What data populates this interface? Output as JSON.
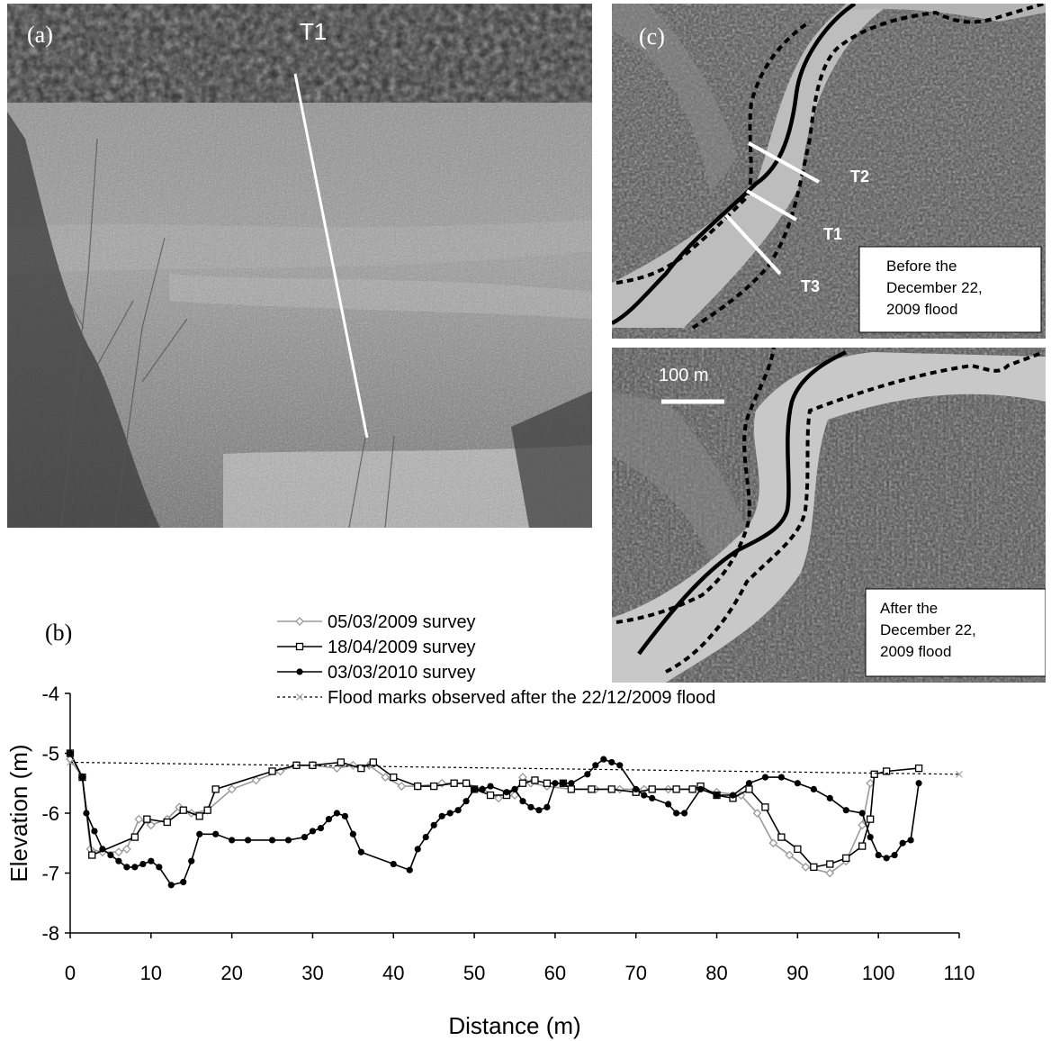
{
  "photo": {
    "label": "(a)",
    "transect": "T1"
  },
  "maps": {
    "label": "(c)",
    "transects": [
      "T2",
      "T1",
      "T3"
    ],
    "before_caption": [
      "Before the",
      "December 22,",
      "2009  flood"
    ],
    "after_caption": [
      "After the",
      "December 22,",
      "2009  flood"
    ],
    "scale_bar": "100 m"
  },
  "chart_data": {
    "type": "line",
    "panel_label": "(b)",
    "title": "",
    "xlabel": "Distance (m)",
    "ylabel": "Elevation (m)",
    "xlim": [
      0,
      110
    ],
    "ylim": [
      -8,
      -4
    ],
    "xticks": [
      0,
      10,
      20,
      30,
      40,
      50,
      60,
      70,
      80,
      90,
      100,
      110
    ],
    "yticks": [
      -8,
      -7,
      -6,
      -5,
      -4
    ],
    "legend_position": "top",
    "series": [
      {
        "name": "05/03/2009 survey",
        "color": "#9a9a9a",
        "marker": "diamond",
        "x": [
          0,
          1.5,
          2.5,
          4,
          6,
          7,
          8.5,
          10,
          12,
          13.5,
          15,
          17,
          20,
          23,
          26,
          28,
          30,
          33,
          35,
          37,
          39,
          41,
          43,
          46,
          49,
          51,
          53,
          55,
          56,
          57,
          59,
          62,
          65,
          68,
          71,
          74,
          77,
          80,
          83,
          85,
          87,
          89,
          91,
          94,
          96,
          98,
          99
        ],
        "y": [
          -5.1,
          -5.4,
          -6.6,
          -6.65,
          -6.65,
          -6.6,
          -6.1,
          -6.2,
          -6.1,
          -5.9,
          -6.0,
          -5.95,
          -5.6,
          -5.45,
          -5.3,
          -5.2,
          -5.2,
          -5.25,
          -5.2,
          -5.2,
          -5.4,
          -5.55,
          -5.55,
          -5.5,
          -5.5,
          -5.6,
          -5.75,
          -5.7,
          -5.4,
          -5.5,
          -5.55,
          -5.6,
          -5.6,
          -5.6,
          -5.6,
          -5.6,
          -5.6,
          -5.65,
          -5.7,
          -6.0,
          -6.5,
          -6.7,
          -6.9,
          -7.0,
          -6.8,
          -6.2,
          -5.5
        ]
      },
      {
        "name": "18/04/2009 survey",
        "color": "#000000",
        "marker": "square",
        "x": [
          0,
          1.5,
          2.7,
          8,
          9.5,
          12,
          14,
          16,
          17,
          18,
          25,
          28,
          30,
          33.5,
          36,
          37.5,
          40,
          43,
          45,
          47.5,
          49,
          50,
          52,
          54,
          56,
          57.5,
          59,
          61,
          62,
          64.5,
          67,
          70,
          72,
          75,
          77,
          78,
          80,
          82,
          84,
          86,
          88,
          90,
          92,
          94,
          96,
          98,
          99,
          99.5,
          101,
          105
        ],
        "y": [
          -5.0,
          -5.4,
          -6.7,
          -6.4,
          -6.1,
          -6.15,
          -5.95,
          -6.05,
          -5.95,
          -5.6,
          -5.3,
          -5.2,
          -5.2,
          -5.15,
          -5.25,
          -5.15,
          -5.4,
          -5.55,
          -5.55,
          -5.5,
          -5.5,
          -5.6,
          -5.7,
          -5.7,
          -5.5,
          -5.45,
          -5.5,
          -5.5,
          -5.6,
          -5.6,
          -5.6,
          -5.65,
          -5.6,
          -5.6,
          -5.6,
          -5.55,
          -5.7,
          -5.75,
          -5.6,
          -5.9,
          -6.4,
          -6.6,
          -6.9,
          -6.85,
          -6.75,
          -6.55,
          -6.1,
          -5.35,
          -5.3,
          -5.25
        ]
      },
      {
        "name": "03/03/2010 survey",
        "color": "#000000",
        "marker": "circle",
        "x": [
          0,
          1.5,
          2,
          3,
          4,
          5,
          6,
          7,
          8,
          9,
          10,
          11,
          12.5,
          14,
          15,
          16,
          18,
          20,
          22,
          25,
          27,
          29,
          30,
          31,
          32,
          33,
          34,
          35,
          36,
          40,
          42,
          43,
          44,
          45,
          46,
          47,
          48,
          49,
          50,
          51,
          52,
          54,
          55,
          56,
          57,
          58,
          59,
          60,
          61,
          62,
          64,
          65,
          66,
          67,
          68,
          70,
          71,
          72,
          74,
          75,
          76,
          78,
          80,
          82,
          84,
          86,
          88,
          90,
          92,
          94,
          96,
          98,
          99,
          100,
          101,
          102,
          103,
          104,
          105
        ],
        "y": [
          -5.0,
          -5.4,
          -6.0,
          -6.3,
          -6.6,
          -6.7,
          -6.8,
          -6.9,
          -6.9,
          -6.85,
          -6.8,
          -6.9,
          -7.2,
          -7.15,
          -6.8,
          -6.35,
          -6.35,
          -6.45,
          -6.45,
          -6.45,
          -6.45,
          -6.4,
          -6.3,
          -6.25,
          -6.1,
          -6.0,
          -6.05,
          -6.35,
          -6.65,
          -6.85,
          -6.95,
          -6.6,
          -6.4,
          -6.2,
          -6.05,
          -6.0,
          -5.95,
          -5.8,
          -5.6,
          -5.6,
          -5.55,
          -5.65,
          -5.6,
          -5.8,
          -5.9,
          -5.95,
          -5.9,
          -5.5,
          -5.5,
          -5.5,
          -5.35,
          -5.2,
          -5.1,
          -5.15,
          -5.2,
          -5.6,
          -5.7,
          -5.75,
          -5.85,
          -6.0,
          -6.0,
          -5.6,
          -5.7,
          -5.7,
          -5.5,
          -5.4,
          -5.4,
          -5.5,
          -5.6,
          -5.75,
          -5.95,
          -6.0,
          -6.4,
          -6.7,
          -6.75,
          -6.7,
          -6.5,
          -6.45,
          -5.5
        ]
      },
      {
        "name": "Flood marks observed after the 22/12/2009 flood",
        "color": "#000000",
        "marker": "x",
        "x": [
          0,
          110
        ],
        "y": [
          -5.15,
          -5.35
        ]
      }
    ]
  }
}
